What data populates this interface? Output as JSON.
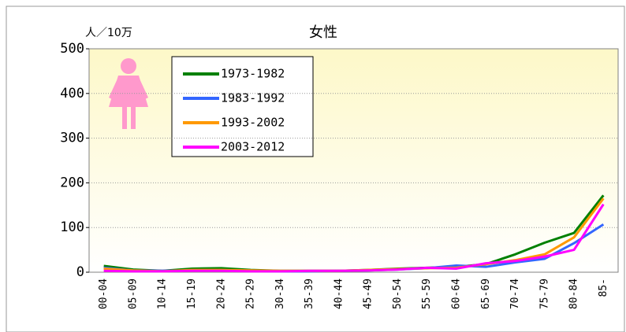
{
  "chart_data": {
    "type": "line",
    "title": "女性",
    "y_label": "人／10万",
    "categories": [
      "00-04",
      "05-09",
      "10-14",
      "15-19",
      "20-24",
      "25-29",
      "30-34",
      "35-39",
      "40-44",
      "45-49",
      "50-54",
      "55-59",
      "60-64",
      "65-69",
      "70-74",
      "75-79",
      "80-84",
      "85-"
    ],
    "series": [
      {
        "name": "1973-1982",
        "color": "#008000",
        "values": [
          14,
          6,
          3,
          8,
          9,
          5,
          3,
          3,
          3,
          5,
          8,
          10,
          12,
          18,
          40,
          66,
          88,
          172
        ]
      },
      {
        "name": "1983-1992",
        "color": "#3366ff",
        "values": [
          10,
          4,
          3,
          4,
          4,
          3,
          2,
          2,
          3,
          4,
          6,
          9,
          15,
          12,
          22,
          30,
          65,
          107
        ]
      },
      {
        "name": "1993-2002",
        "color": "#ff9900",
        "values": [
          8,
          4,
          2,
          5,
          5,
          4,
          3,
          3,
          3,
          5,
          7,
          9,
          10,
          18,
          27,
          40,
          78,
          165
        ]
      },
      {
        "name": "2003-2012",
        "color": "#ff00ff",
        "values": [
          3,
          2,
          2,
          3,
          3,
          2,
          2,
          3,
          3,
          4,
          6,
          10,
          8,
          20,
          25,
          35,
          50,
          152
        ]
      }
    ],
    "ylim": [
      0,
      500
    ],
    "yticks": [
      0,
      100,
      200,
      300,
      400,
      500
    ],
    "grid": true
  }
}
